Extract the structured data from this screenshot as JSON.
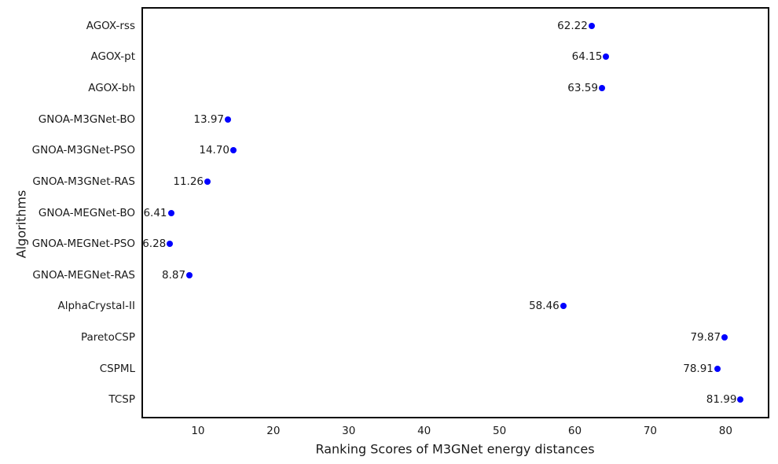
{
  "chart_data": {
    "type": "scatter",
    "title": "",
    "xlabel": "Ranking Scores of M3GNet energy distances",
    "ylabel": "Algorithms",
    "orientation": "horizontal-categorical",
    "categories": [
      "AGOX-rss",
      "AGOX-pt",
      "AGOX-bh",
      "GNOA-M3GNet-BO",
      "GNOA-M3GNet-PSO",
      "GNOA-M3GNet-RAS",
      "GNOA-MEGNet-BO",
      "GNOA-MEGNet-PSO",
      "GNOA-MEGNet-RAS",
      "AlphaCrystal-II",
      "ParetoCSP",
      "CSPML",
      "TCSP"
    ],
    "values": [
      62.22,
      64.15,
      63.59,
      13.97,
      14.7,
      11.26,
      6.41,
      6.28,
      8.87,
      58.46,
      79.87,
      78.91,
      81.99
    ],
    "value_labels": [
      "62.22",
      "64.15",
      "63.59",
      "13.97",
      "14.70",
      "11.26",
      "6.41",
      "6.28",
      "8.87",
      "58.46",
      "79.87",
      "78.91",
      "81.99"
    ],
    "x_ticks": [
      10,
      20,
      30,
      40,
      50,
      60,
      70,
      80
    ],
    "xlim": [
      2.5,
      85.8
    ],
    "grid": false,
    "legend": null,
    "marker_color": "#0000ff",
    "text_color": "#1a1a1a",
    "spine_color": "#0a0a0a"
  }
}
